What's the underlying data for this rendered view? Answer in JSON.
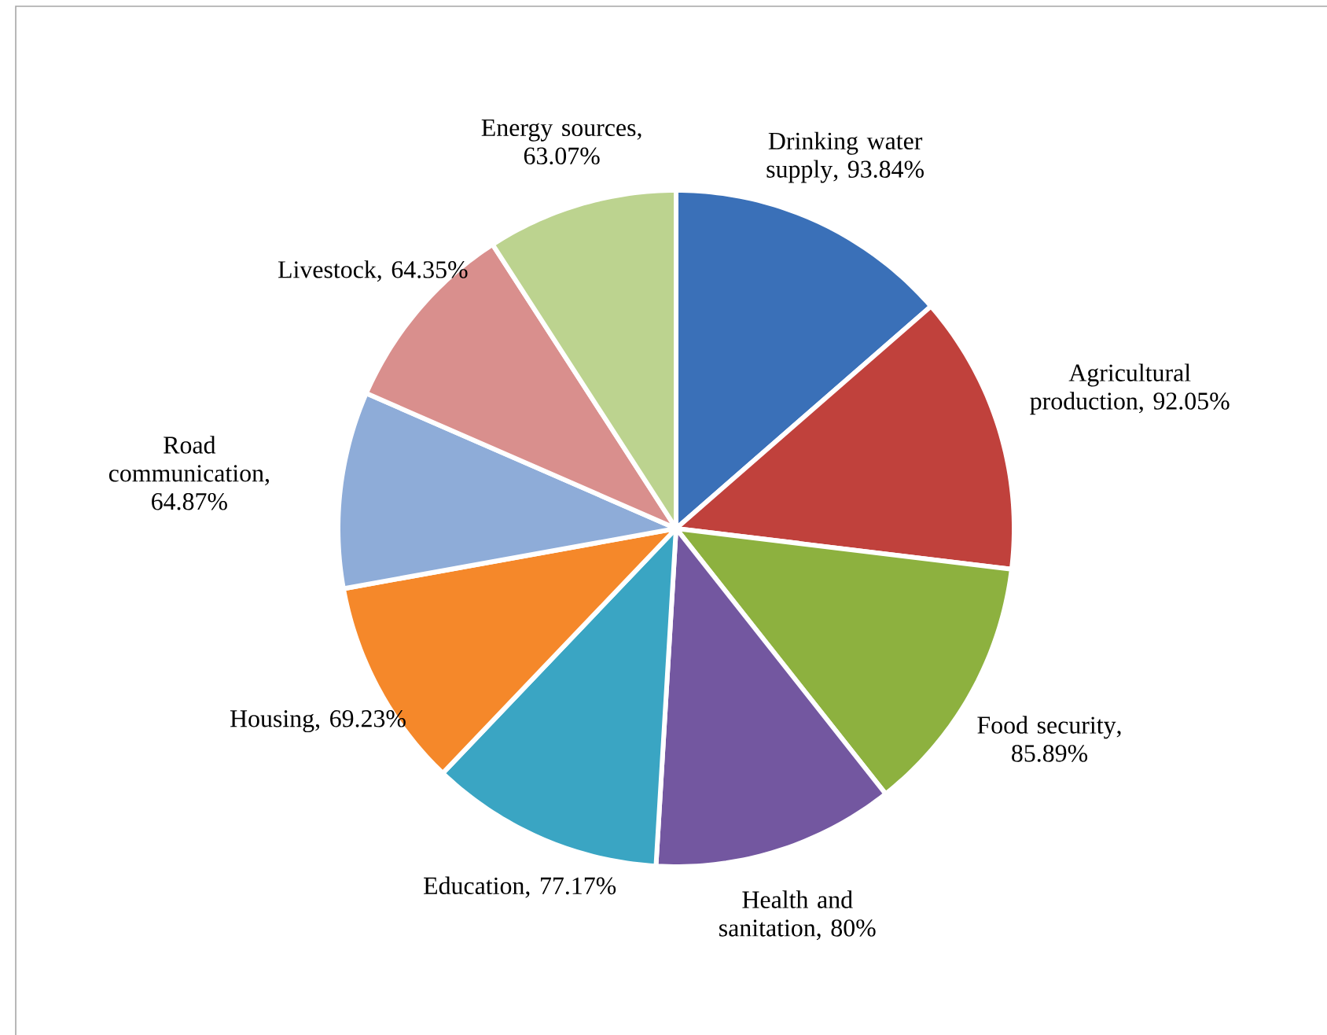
{
  "chart_data": {
    "type": "pie",
    "categories": [
      "Drinking water supply",
      "Agricultural production",
      "Food security",
      "Health and sanitation",
      "Education",
      "Housing",
      "Road communication",
      "Livestock",
      "Energy sources"
    ],
    "values": [
      93.84,
      92.05,
      85.89,
      80,
      77.17,
      69.23,
      64.87,
      64.35,
      63.07
    ],
    "value_labels": [
      ", 93.84%",
      ", 92.05%",
      ", 85.89%",
      ", 80%",
      ", 77.17%",
      ", 69.23%",
      ", 64.87%",
      ", 64.35%",
      ", 63.07%"
    ],
    "colors": [
      "#3a70b8",
      "#c0413c",
      "#8db13f",
      "#7357a0",
      "#3aa5c3",
      "#f5882a",
      "#8eacd8",
      "#d98f8d",
      "#bcd38f"
    ]
  }
}
